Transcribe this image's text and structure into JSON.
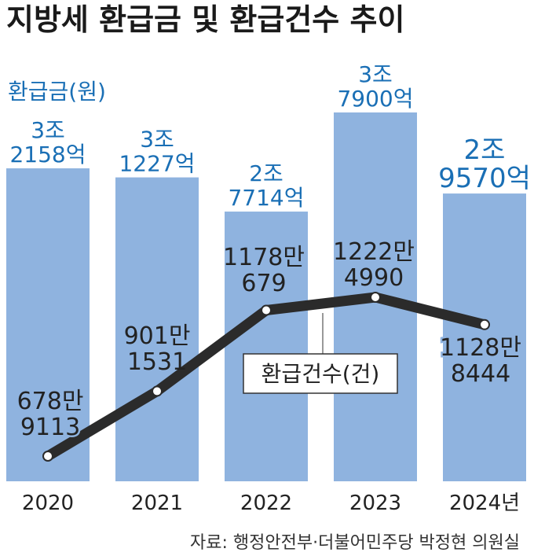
{
  "chart_data": {
    "type": "bar",
    "title": "지방세 환급금 및 환급건수 추이",
    "categories": [
      "2020",
      "2021",
      "2022",
      "2023",
      "2024년"
    ],
    "series": [
      {
        "name": "환급금(원)",
        "type": "bar",
        "values": [
          32158,
          31227,
          27714,
          37900,
          29570
        ],
        "value_unit": "억원",
        "labels": [
          [
            "3조",
            "2158억"
          ],
          [
            "3조",
            "1227억"
          ],
          [
            "2조",
            "7714억"
          ],
          [
            "3조",
            "7900억"
          ],
          [
            "2조",
            "9570억"
          ]
        ]
      },
      {
        "name": "환급건수(건)",
        "type": "line",
        "values": [
          6789113,
          9011531,
          11780679,
          12224990,
          11288444
        ],
        "labels": [
          [
            "678만",
            "9113"
          ],
          [
            "901만",
            "1531"
          ],
          [
            "1178만",
            "679"
          ],
          [
            "1222만",
            "4990"
          ],
          [
            "1128만",
            "8444"
          ]
        ]
      }
    ],
    "legend": {
      "bar": "환급금(원)",
      "line": "환급건수(건)"
    },
    "source": "자료: 행정안전부·더불어민주당 박정현 의원실",
    "colors": {
      "bar": "#8fb3df",
      "line": "#2b2b2b",
      "bar_label": "#1a6fb5",
      "line_label": "#222222",
      "marker_fill": "#ffffff"
    }
  }
}
